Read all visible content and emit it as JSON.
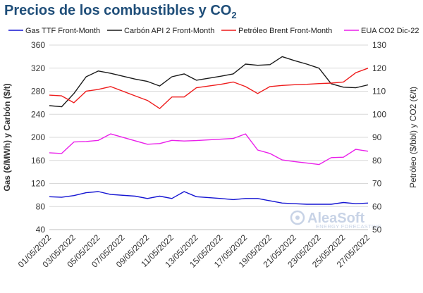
{
  "chart_data": {
    "type": "line",
    "title": "Precios de los combustibles y CO",
    "title_sub": "2",
    "ylabel_left": "Gas (€/MWh) y Carbón ($/t)",
    "ylabel_right": "Petróleo ($/bbl) y CO2 (€/t)",
    "ylim_left": [
      40,
      360
    ],
    "ylim_right": [
      50,
      130
    ],
    "yticks_left": [
      "40",
      "80",
      "120",
      "160",
      "200",
      "240",
      "280",
      "320",
      "360"
    ],
    "yticks_right": [
      "50",
      "60",
      "70",
      "80",
      "90",
      "100",
      "110",
      "120",
      "130"
    ],
    "x": [
      "01/05/2022",
      "02/05/2022",
      "03/05/2022",
      "04/05/2022",
      "05/05/2022",
      "06/05/2022",
      "07/05/2022",
      "08/05/2022",
      "09/05/2022",
      "10/05/2022",
      "11/05/2022",
      "12/05/2022",
      "13/05/2022",
      "14/05/2022",
      "15/05/2022",
      "16/05/2022",
      "17/05/2022",
      "18/05/2022",
      "19/05/2022",
      "20/05/2022",
      "21/05/2022",
      "22/05/2022",
      "23/05/2022",
      "24/05/2022",
      "25/05/2022",
      "26/05/2022",
      "27/05/2022"
    ],
    "xtick_labels": [
      "01/05/2022",
      "03/05/2022",
      "05/05/2022",
      "07/05/2022",
      "09/05/2022",
      "11/05/2022",
      "13/05/2022",
      "15/05/2022",
      "17/05/2022",
      "19/05/2022",
      "21/05/2022",
      "23/05/2022",
      "25/05/2022",
      "27/05/2022"
    ],
    "series": [
      {
        "name": "Gas TTF Front-Month",
        "axis": "left",
        "color": "#1414d2",
        "values": [
          97,
          96,
          99,
          104,
          106,
          101,
          null,
          98,
          94,
          98,
          94,
          106,
          97,
          null,
          94,
          92,
          94,
          94,
          90,
          86,
          85,
          84,
          84,
          84,
          87,
          85,
          86
        ]
      },
      {
        "name": "Carbón API 2 Front-Month",
        "axis": "left",
        "color": "#1a1a1a",
        "values": [
          255,
          253,
          276,
          305,
          315,
          311,
          null,
          301,
          297,
          289,
          305,
          310,
          299,
          null,
          306,
          310,
          327,
          325,
          326,
          340,
          333,
          327,
          320,
          293,
          287,
          286,
          291
        ]
      },
      {
        "name": "Petróleo Brent Front-Month",
        "axis": "right",
        "color": "#ee1c1c",
        "values": [
          108.3,
          108.0,
          105.0,
          110.0,
          110.8,
          112.0,
          null,
          108.0,
          106.0,
          102.5,
          107.5,
          107.5,
          111.5,
          null,
          113.0,
          114.0,
          112.0,
          109.0,
          112.0,
          112.5,
          112.8,
          113.0,
          113.3,
          113.5,
          114.0,
          118.0,
          120.0
        ]
      },
      {
        "name": "EUA CO2 Dic-22",
        "axis": "right",
        "color": "#ea1fea",
        "values": [
          83.3,
          83.0,
          88.0,
          88.2,
          88.7,
          91.5,
          null,
          88.5,
          87.0,
          87.3,
          88.7,
          88.4,
          88.6,
          null,
          89.2,
          89.5,
          91.5,
          84.5,
          83.0,
          80.2,
          79.5,
          78.9,
          78.2,
          81.2,
          81.4,
          84.8,
          84.0
        ]
      }
    ],
    "grid": "horizontal",
    "legend": "top"
  },
  "watermark": {
    "brand": "AleaSoft",
    "tagline": "ENERGY FORECASTING"
  }
}
